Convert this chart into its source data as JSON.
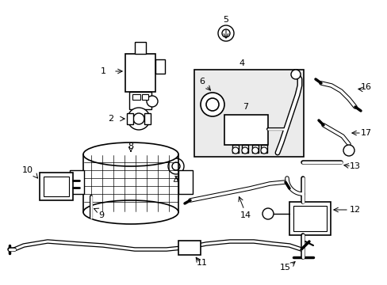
{
  "background_color": "#ffffff",
  "line_color": "#000000",
  "figsize": [
    4.89,
    3.6
  ],
  "dpi": 100,
  "xlim": [
    0,
    489
  ],
  "ylim": [
    0,
    360
  ]
}
